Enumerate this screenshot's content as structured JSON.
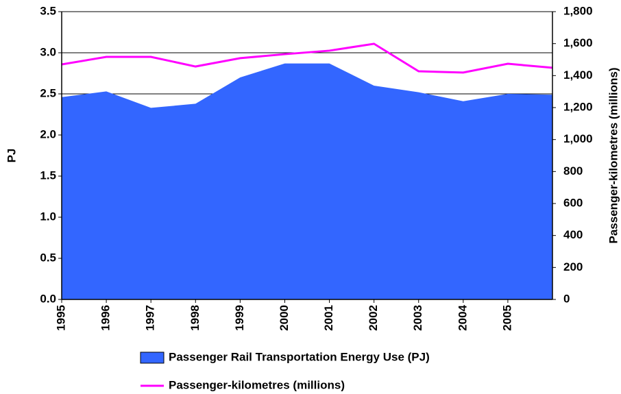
{
  "chart_data": {
    "type": "area",
    "x": [
      1995,
      1996,
      1997,
      1998,
      1999,
      2000,
      2001,
      2002,
      2003,
      2004,
      2005,
      2006
    ],
    "xlim": [
      1995,
      2006
    ],
    "xticks": [
      1995,
      1996,
      1997,
      1998,
      1999,
      2000,
      2001,
      2002,
      2003,
      2004,
      2005
    ],
    "ylabel": "PJ",
    "y2label": "Passenger-kilometres (millions)",
    "ylim": [
      0,
      3.5
    ],
    "yticks": [
      {
        "value": 0,
        "label": "0.0"
      },
      0.5,
      {
        "value": 1,
        "label": "1.0"
      },
      1.5,
      {
        "value": 2,
        "label": "2.0"
      },
      2.5,
      {
        "value": 3,
        "label": "3.0"
      },
      3.5
    ],
    "y2lim": [
      0,
      1800
    ],
    "y2ticks": [
      0,
      200,
      400,
      600,
      800,
      {
        "value": 1000,
        "label": "1,000"
      },
      {
        "value": 1200,
        "label": "1,200"
      },
      {
        "value": 1400,
        "label": "1,400"
      },
      {
        "value": 1600,
        "label": "1,600"
      },
      {
        "value": 1800,
        "label": "1,800"
      }
    ],
    "grid": true,
    "legend": "bottom",
    "series": [
      {
        "name": "Passenger Rail Transportation Energy Use (PJ)",
        "type": "area",
        "color": "#3366ff",
        "values": [
          2.46,
          2.53,
          2.33,
          2.38,
          2.7,
          2.87,
          2.87,
          2.6,
          2.52,
          2.41,
          2.5,
          2.49
        ]
      },
      {
        "name": "Passenger-kilometres (millions)",
        "type": "line",
        "axis": "y2",
        "color": "#ff00ff",
        "values": [
          1470,
          1517,
          1517,
          1457,
          1509,
          1534,
          1556,
          1599,
          1427,
          1419,
          1474,
          1449
        ]
      }
    ]
  }
}
